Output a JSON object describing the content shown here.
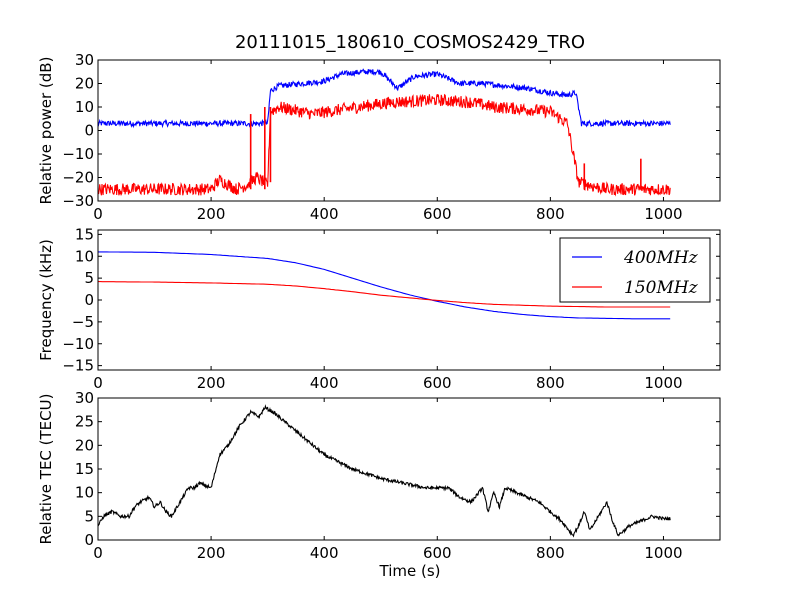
{
  "figure": {
    "title": "20111015_180610_COSMOS2429_TRO",
    "xlabel": "Time (s)"
  },
  "chart_data": [
    {
      "type": "line",
      "ylabel": "Relative power (dB)",
      "xlim": [
        0,
        1100
      ],
      "ylim": [
        -30,
        30
      ],
      "xticks": [
        0,
        200,
        400,
        600,
        800,
        1000
      ],
      "yticks": [
        -30,
        -20,
        -10,
        0,
        10,
        20,
        30
      ],
      "grid": false,
      "series": [
        {
          "color": "#0000ff",
          "noise": 1.2,
          "x": [
            0,
            150,
            290,
            300,
            305,
            320,
            360,
            400,
            430,
            470,
            500,
            530,
            560,
            600,
            640,
            680,
            720,
            760,
            800,
            830,
            845,
            855,
            900,
            960,
            1012
          ],
          "y": [
            3,
            3,
            3,
            3,
            17,
            19,
            20,
            21,
            24,
            25,
            25,
            18,
            23,
            24,
            20,
            20,
            19,
            18,
            16,
            15,
            16,
            3,
            3,
            3,
            3
          ]
        },
        {
          "color": "#ff0000",
          "noise": 2.6,
          "x": [
            0,
            100,
            190,
            200,
            215,
            245,
            265,
            280,
            300,
            305,
            320,
            380,
            460,
            520,
            600,
            660,
            700,
            760,
            800,
            830,
            850,
            880,
            900,
            950,
            1012
          ],
          "y": [
            -25,
            -25,
            -25,
            -25,
            -21,
            -25,
            -23,
            -20,
            -23,
            8,
            10,
            7,
            10,
            12,
            13,
            12,
            10,
            9,
            8,
            3,
            -22,
            -24,
            -25,
            -25,
            -25
          ]
        }
      ],
      "annotations_spikes": [
        {
          "x": 270,
          "y_from": -25,
          "y_to": 7,
          "color": "#ff0000"
        },
        {
          "x": 295,
          "y_from": -25,
          "y_to": 10,
          "color": "#ff0000"
        },
        {
          "x": 305,
          "y_from": -22,
          "y_to": 10,
          "color": "#ff0000"
        },
        {
          "x": 860,
          "y_from": -25,
          "y_to": -14,
          "color": "#ff0000"
        },
        {
          "x": 960,
          "y_from": -25,
          "y_to": -12,
          "color": "#ff0000"
        }
      ]
    },
    {
      "type": "line",
      "ylabel": "Frequency (kHz)",
      "xlim": [
        0,
        1100
      ],
      "ylim": [
        -16,
        16
      ],
      "xticks": [
        0,
        200,
        400,
        600,
        800,
        1000
      ],
      "yticks": [
        -15,
        -10,
        -5,
        0,
        5,
        10,
        15
      ],
      "grid": false,
      "legend": "top-right",
      "series": [
        {
          "name": "400MHz",
          "color": "#0000ff",
          "noise": 0,
          "x": [
            0,
            100,
            200,
            300,
            350,
            400,
            450,
            500,
            550,
            600,
            650,
            700,
            750,
            800,
            850,
            900,
            950,
            1012
          ],
          "y": [
            11,
            10.9,
            10.4,
            9.5,
            8.5,
            7,
            5,
            3,
            1.2,
            -0.3,
            -1.6,
            -2.6,
            -3.3,
            -3.8,
            -4.1,
            -4.2,
            -4.3,
            -4.3
          ]
        },
        {
          "name": "150MHz",
          "color": "#ff0000",
          "noise": 0,
          "x": [
            0,
            100,
            200,
            300,
            350,
            400,
            450,
            500,
            550,
            600,
            650,
            700,
            750,
            800,
            850,
            900,
            950,
            1012
          ],
          "y": [
            4.2,
            4.1,
            3.9,
            3.6,
            3.2,
            2.6,
            1.9,
            1.1,
            0.5,
            -0.1,
            -0.6,
            -1.0,
            -1.2,
            -1.4,
            -1.5,
            -1.6,
            -1.6,
            -1.6
          ]
        }
      ]
    },
    {
      "type": "line",
      "ylabel": "Relative TEC (TECU)",
      "xlim": [
        0,
        1100
      ],
      "ylim": [
        0,
        30
      ],
      "xticks": [
        0,
        200,
        400,
        600,
        800,
        1000
      ],
      "yticks": [
        0,
        5,
        10,
        15,
        20,
        25,
        30
      ],
      "grid": false,
      "series": [
        {
          "color": "#000000",
          "noise": 0.35,
          "x": [
            0,
            10,
            25,
            40,
            55,
            65,
            75,
            90,
            100,
            110,
            120,
            130,
            140,
            150,
            160,
            170,
            180,
            200,
            215,
            230,
            250,
            270,
            285,
            295,
            310,
            330,
            360,
            400,
            450,
            500,
            540,
            580,
            620,
            640,
            660,
            680,
            690,
            700,
            710,
            720,
            740,
            780,
            800,
            820,
            840,
            850,
            860,
            870,
            880,
            890,
            900,
            910,
            920,
            940,
            960,
            980,
            1000,
            1012
          ],
          "y": [
            3,
            5,
            6,
            5,
            5,
            7,
            8,
            9,
            7,
            8,
            6,
            5,
            7,
            9,
            11,
            11,
            12,
            11,
            18,
            20,
            24,
            27,
            26,
            28,
            27,
            25,
            22,
            18,
            15,
            13,
            12,
            11,
            11,
            9,
            8,
            11,
            6,
            10,
            7,
            11,
            10,
            8,
            6,
            4,
            1,
            3,
            6,
            2,
            4,
            6,
            8,
            4,
            1,
            3,
            4,
            5,
            4.5,
            4.5
          ]
        }
      ]
    }
  ],
  "panels_meta": [
    "top",
    "middle",
    "bottom"
  ]
}
